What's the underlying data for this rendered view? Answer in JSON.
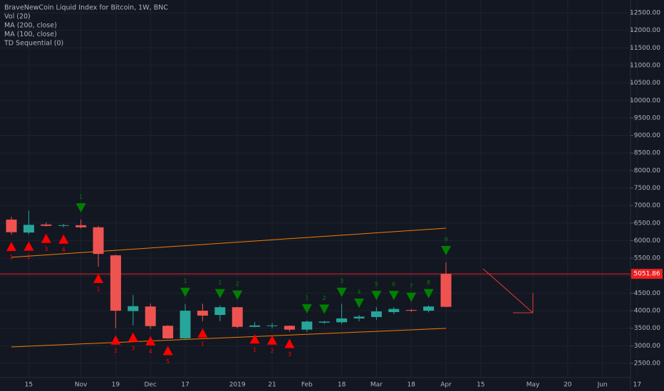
{
  "chart_data": {
    "type": "candlestick",
    "title": "BraveNewCoin Liquid Index for Bitcoin, 1W, BNC",
    "indicators": [
      "Vol (20)",
      "MA (200, close)",
      "MA (100, close)",
      "TD Sequential (0)"
    ],
    "categories": [
      null,
      "15",
      null,
      null,
      "Nov",
      null,
      "19",
      null,
      "Dec",
      null,
      "17",
      null,
      null,
      "2019",
      null,
      "21",
      null,
      "Feb",
      null,
      "18",
      null,
      "Mar",
      null,
      "18",
      null,
      "Apr",
      null,
      "15",
      null,
      null,
      "May",
      null,
      "20",
      null,
      "Jun",
      null,
      "17"
    ],
    "open": [
      6600,
      6230,
      6460,
      6420,
      6440,
      6380,
      5580,
      3990,
      4120,
      3570,
      3210,
      4000,
      3880,
      4100,
      3540,
      3570,
      3570,
      3460,
      3660,
      3670,
      3780,
      3820,
      3960,
      4020,
      4000,
      5050,
      null,
      null,
      null,
      null,
      null,
      null,
      null,
      null,
      null,
      null,
      null
    ],
    "high": [
      6680,
      6860,
      6520,
      6480,
      6600,
      6420,
      5600,
      4450,
      4200,
      3590,
      4190,
      4200,
      4150,
      4110,
      3680,
      3650,
      3580,
      3720,
      3710,
      4190,
      3880,
      4100,
      4100,
      4050,
      4150,
      5380,
      null,
      null,
      null,
      null,
      null,
      null,
      null,
      null,
      null,
      null,
      null
    ],
    "low": [
      6170,
      6180,
      6400,
      6380,
      6350,
      5260,
      3500,
      3580,
      3480,
      3200,
      3200,
      3700,
      3700,
      3500,
      3530,
      3500,
      3400,
      3400,
      3620,
      3620,
      3700,
      3740,
      3900,
      3960,
      3950,
      4100,
      null,
      null,
      null,
      null,
      null,
      null,
      null,
      null,
      null,
      null,
      null
    ],
    "close": [
      6240,
      6450,
      6420,
      6440,
      6380,
      5620,
      4000,
      4130,
      3560,
      3210,
      4000,
      3860,
      4100,
      3540,
      3580,
      3580,
      3460,
      3690,
      3690,
      3780,
      3830,
      3980,
      4050,
      4000,
      4120,
      4110,
      null,
      null,
      null,
      null,
      null,
      null,
      null,
      null,
      null,
      null,
      null
    ],
    "up_color": "#26a69a",
    "down_color": "#ef5350",
    "ma_lines": [
      {
        "name": "MA (200, close)",
        "color": "#f57c00",
        "values": [
          2968,
          null,
          null,
          null,
          null,
          null,
          null,
          null,
          null,
          null,
          null,
          null,
          null,
          null,
          null,
          null,
          null,
          null,
          null,
          null,
          null,
          null,
          null,
          null,
          null,
          3496,
          null,
          null,
          null,
          null,
          null,
          null,
          null,
          null,
          null,
          null,
          null
        ]
      },
      {
        "name": "MA (100, close)",
        "color": "#f57c00",
        "values": [
          5524,
          null,
          null,
          null,
          null,
          null,
          null,
          null,
          null,
          null,
          null,
          null,
          null,
          null,
          null,
          null,
          null,
          null,
          null,
          null,
          null,
          null,
          null,
          null,
          null,
          6355,
          null,
          null,
          null,
          null,
          null,
          null,
          null,
          null,
          null,
          null,
          null
        ]
      }
    ],
    "td_buy_color": "#ff0000",
    "td_sell_color": "#008000",
    "td_buy": [
      {
        "index": 0,
        "label": "1"
      },
      {
        "index": 1,
        "label": "2"
      },
      {
        "index": 2,
        "label": "3"
      },
      {
        "index": 3,
        "label": "4"
      },
      {
        "index": 5,
        "label": "1"
      },
      {
        "index": 6,
        "label": "2"
      },
      {
        "index": 7,
        "label": "3"
      },
      {
        "index": 8,
        "label": "4"
      },
      {
        "index": 9,
        "label": "5"
      },
      {
        "index": 11,
        "label": "1"
      },
      {
        "index": 14,
        "label": "1"
      },
      {
        "index": 15,
        "label": "2"
      },
      {
        "index": 16,
        "label": "3"
      }
    ],
    "td_sell": [
      {
        "index": 4,
        "label": "1"
      },
      {
        "index": 10,
        "label": "1"
      },
      {
        "index": 12,
        "label": "1"
      },
      {
        "index": 13,
        "label": "2"
      },
      {
        "index": 17,
        "label": "1"
      },
      {
        "index": 18,
        "label": "2"
      },
      {
        "index": 19,
        "label": "3"
      },
      {
        "index": 20,
        "label": "4"
      },
      {
        "index": 21,
        "label": "5"
      },
      {
        "index": 22,
        "label": "6"
      },
      {
        "index": 23,
        "label": "7"
      },
      {
        "index": 24,
        "label": "8"
      },
      {
        "index": 25,
        "label": "9"
      }
    ],
    "current_price": 5051.86,
    "current_price_color": "#ef1f1f",
    "ylim": [
      2115,
      12865
    ],
    "yticks": [
      {
        "value": 2500,
        "label": "2500.00"
      },
      {
        "value": 3000,
        "label": "3000.00"
      },
      {
        "value": 3500,
        "label": "3500.00"
      },
      {
        "value": 4000,
        "label": "4000.00"
      },
      {
        "value": 4500,
        "label": "4500.00"
      },
      {
        "value": 5000,
        "label": "5000.00"
      },
      {
        "value": 5500,
        "label": "5500.00"
      },
      {
        "value": 6000,
        "label": "6000.00"
      },
      {
        "value": 6500,
        "label": "6500.00"
      },
      {
        "value": 7000,
        "label": "7000.00"
      },
      {
        "value": 7500,
        "label": "7500.00"
      },
      {
        "value": 8000,
        "label": "8000.00"
      },
      {
        "value": 8500,
        "label": "8500.00"
      },
      {
        "value": 9000,
        "label": "9000.00"
      },
      {
        "value": 9500,
        "label": "9500.00"
      },
      {
        "value": 10000,
        "label": "10000.00"
      },
      {
        "value": 10500,
        "label": "10500.00"
      },
      {
        "value": 11000,
        "label": "11000.00"
      },
      {
        "value": 11500,
        "label": "11500.00"
      },
      {
        "value": 12000,
        "label": "12000.00"
      },
      {
        "value": 12500,
        "label": "12500.00"
      }
    ],
    "grid": true
  }
}
